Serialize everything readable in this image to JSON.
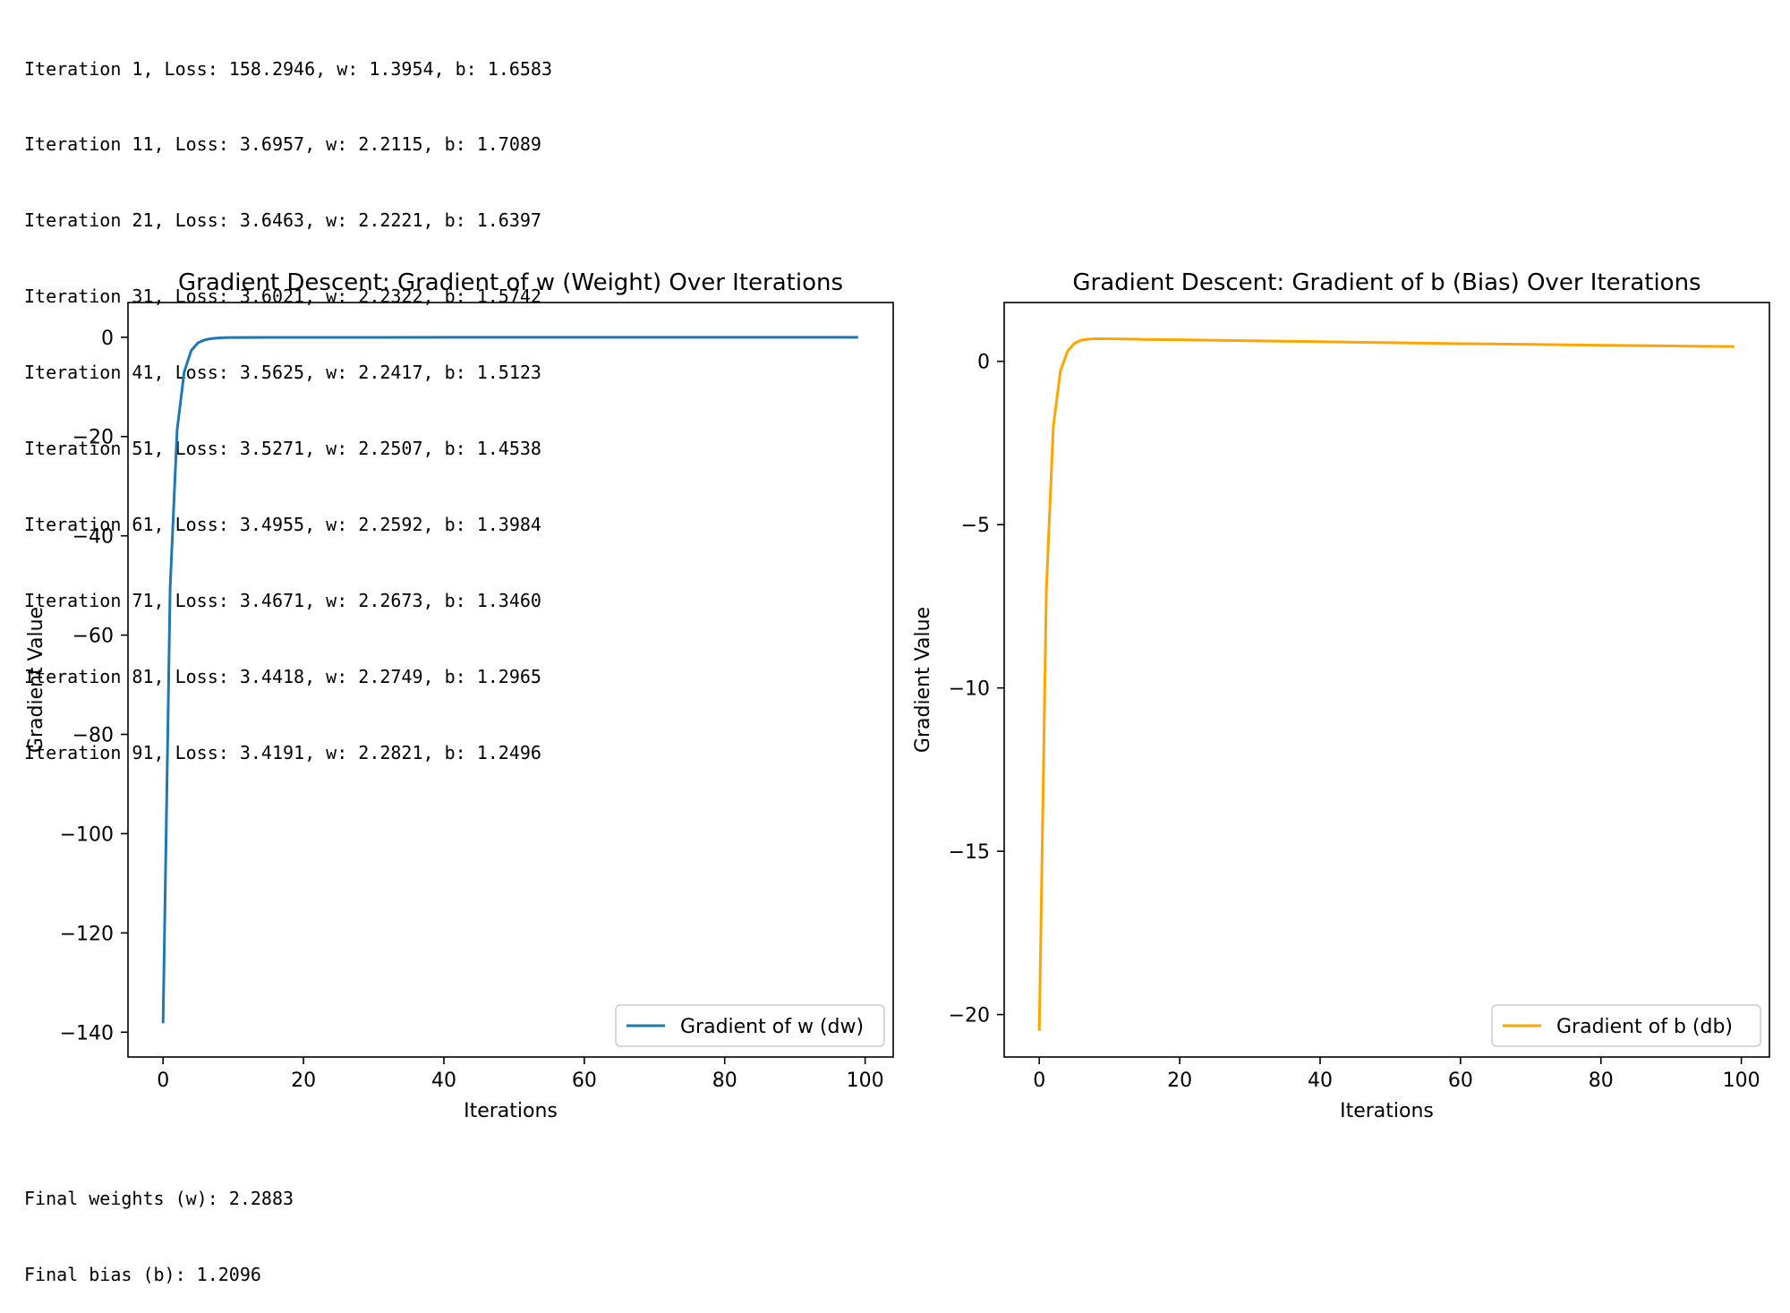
{
  "log_lines": [
    "Iteration 1, Loss: 158.2946, w: 1.3954, b: 1.6583",
    "Iteration 11, Loss: 3.6957, w: 2.2115, b: 1.7089",
    "Iteration 21, Loss: 3.6463, w: 2.2221, b: 1.6397",
    "Iteration 31, Loss: 3.6021, w: 2.2322, b: 1.5742",
    "Iteration 41, Loss: 3.5625, w: 2.2417, b: 1.5123",
    "Iteration 51, Loss: 3.5271, w: 2.2507, b: 1.4538",
    "Iteration 61, Loss: 3.4955, w: 2.2592, b: 1.3984",
    "Iteration 71, Loss: 3.4671, w: 2.2673, b: 1.3460",
    "Iteration 81, Loss: 3.4418, w: 2.2749, b: 1.2965",
    "Iteration 91, Loss: 3.4191, w: 2.2821, b: 1.2496"
  ],
  "final_lines": [
    "Final weights (w): 2.2883",
    "Final bias (b): 1.2096"
  ],
  "chart_data": [
    {
      "type": "line",
      "title": "Gradient Descent: Gradient of w (Weight) Over Iterations",
      "xlabel": "Iterations",
      "ylabel": "Gradient Value",
      "xlim": [
        -5,
        104
      ],
      "ylim": [
        -145,
        7
      ],
      "xticks": [
        0,
        20,
        40,
        60,
        80,
        100
      ],
      "yticks": [
        0,
        -20,
        -40,
        -60,
        -80,
        -100,
        -120,
        -140
      ],
      "legend_position": "lower-right",
      "series": [
        {
          "name": "Gradient of w (dw)",
          "color": "#1f77b4",
          "x": [
            0,
            1,
            2,
            3,
            4,
            5,
            6,
            7,
            8,
            9,
            10,
            15,
            20,
            30,
            40,
            50,
            60,
            70,
            80,
            90,
            99
          ],
          "y": [
            -138.2,
            -50.5,
            -18.7,
            -7.0,
            -2.7,
            -1.1,
            -0.5,
            -0.25,
            -0.12,
            -0.07,
            -0.05,
            -0.03,
            -0.03,
            -0.03,
            -0.02,
            -0.02,
            -0.02,
            -0.02,
            -0.02,
            -0.01,
            -0.01
          ]
        }
      ]
    },
    {
      "type": "line",
      "title": "Gradient Descent: Gradient of b (Bias) Over Iterations",
      "xlabel": "Iterations",
      "ylabel": "Gradient Value",
      "xlim": [
        -5,
        104
      ],
      "ylim": [
        -21.3,
        1.8
      ],
      "xticks": [
        0,
        20,
        40,
        60,
        80,
        100
      ],
      "yticks": [
        0,
        -5,
        -10,
        -15,
        -20
      ],
      "legend_position": "lower-right",
      "series": [
        {
          "name": "Gradient of b (db)",
          "color": "#ffa500",
          "x": [
            0,
            1,
            2,
            3,
            4,
            5,
            6,
            7,
            8,
            10,
            15,
            20,
            30,
            40,
            50,
            60,
            70,
            80,
            90,
            99
          ],
          "y": [
            -20.5,
            -7.0,
            -2.0,
            -0.3,
            0.3,
            0.55,
            0.65,
            0.68,
            0.69,
            0.69,
            0.67,
            0.66,
            0.63,
            0.6,
            0.57,
            0.54,
            0.52,
            0.49,
            0.47,
            0.45
          ]
        }
      ]
    }
  ]
}
